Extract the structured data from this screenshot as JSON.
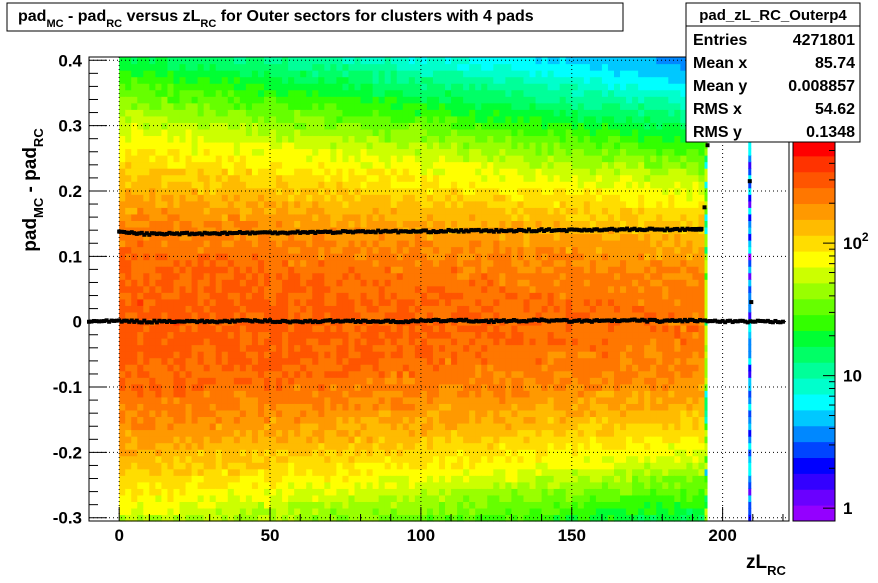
{
  "chart_data": {
    "type": "heatmap",
    "title": {
      "parts": [
        {
          "text": "pad"
        },
        {
          "text": "MC",
          "sub": true
        },
        {
          "text": " - pad"
        },
        {
          "text": "RC",
          "sub": true
        },
        {
          "text": " versus zL"
        },
        {
          "text": "RC",
          "sub": true
        },
        {
          "text": " for Outer sectors for clusters with 4 pads"
        }
      ]
    },
    "xlabel": {
      "parts": [
        {
          "text": "zL"
        },
        {
          "text": "RC",
          "sub": true
        }
      ]
    },
    "ylabel": {
      "parts": [
        {
          "text": "pad"
        },
        {
          "text": "MC",
          "sub": true
        },
        {
          "text": " - pad"
        },
        {
          "text": "RC",
          "sub": true
        }
      ]
    },
    "xlim": [
      -10,
      222
    ],
    "ylim": [
      -0.305,
      0.405
    ],
    "x_ticks": [
      0,
      50,
      100,
      150,
      200
    ],
    "x_tick_labels": [
      "0",
      "50",
      "100",
      "150",
      "200"
    ],
    "y_ticks": [
      -0.3,
      -0.2,
      -0.1,
      0,
      0.1,
      0.2,
      0.3,
      0.4
    ],
    "y_tick_labels": [
      "-0.3",
      "-0.2",
      "-0.1",
      "0",
      "0.1",
      "0.2",
      "0.3",
      "0.4"
    ],
    "grid": true,
    "colorbar": {
      "scale": "log",
      "range": [
        0.8,
        600
      ],
      "tick_labels": [
        {
          "value": 1,
          "base": "1",
          "exp": ""
        },
        {
          "value": 10,
          "base": "10",
          "exp": ""
        },
        {
          "value": 100,
          "base": "10",
          "exp": "2"
        }
      ],
      "palette": [
        "#9400ff",
        "#6a00ff",
        "#3300ff",
        "#0000ff",
        "#0044ff",
        "#0088ff",
        "#00c8ff",
        "#00ffff",
        "#00ffcc",
        "#00ff99",
        "#00ff66",
        "#00ff33",
        "#33ff00",
        "#66ff00",
        "#99ff00",
        "#ccff00",
        "#ffff00",
        "#ffdd00",
        "#ffbb00",
        "#ff9900",
        "#ff7700",
        "#ff5500",
        "#ff3300",
        "#ff0000"
      ]
    },
    "density": {
      "x_range": [
        0,
        194
      ],
      "sigma_start": 0.165,
      "sigma_end": 0.125,
      "peak_start": 300,
      "peak_end": 230,
      "sparse_columns": [
        194.5,
        209
      ]
    },
    "series": [
      {
        "name": "",
        "x": [
          0,
          10,
          20,
          30,
          40,
          50,
          60,
          70,
          80,
          90,
          100,
          110,
          120,
          130,
          140,
          150,
          160,
          170,
          180,
          190,
          193
        ],
        "y": [
          0.137,
          0.134,
          0.135,
          0.135,
          0.136,
          0.136,
          0.137,
          0.137,
          0.138,
          0.138,
          0.138,
          0.139,
          0.139,
          0.139,
          0.14,
          0.14,
          0.141,
          0.141,
          0.141,
          0.141,
          0.142
        ]
      },
      {
        "name": "",
        "x": [
          -10,
          0,
          10,
          20,
          30,
          40,
          50,
          60,
          70,
          80,
          90,
          100,
          110,
          120,
          130,
          140,
          150,
          160,
          170,
          180,
          190,
          200,
          210,
          220
        ],
        "y": [
          0.0,
          0.001,
          0.0,
          0.001,
          0.0,
          0.001,
          0.001,
          0.0,
          0.001,
          0.001,
          0.0,
          0.001,
          0.002,
          0.001,
          0.001,
          0.002,
          0.001,
          0.001,
          0.002,
          0.001,
          0.002,
          0.0,
          0.0,
          0.0
        ]
      }
    ],
    "outliers": [
      {
        "x": 194,
        "y": 0.175
      },
      {
        "x": 195,
        "y": 0.27
      },
      {
        "x": 209,
        "y": 0.215
      },
      {
        "x": 209.5,
        "y": 0.03
      }
    ],
    "stats_box": {
      "title": "pad_zL_RC_Outerp4",
      "rows": [
        {
          "label": "Entries",
          "value": "4271801"
        },
        {
          "label": "Mean x",
          "value": "85.74"
        },
        {
          "label": "Mean y",
          "value": "0.008857"
        },
        {
          "label": "RMS x",
          "value": "54.62"
        },
        {
          "label": "RMS y",
          "value": "0.1348"
        }
      ]
    }
  }
}
